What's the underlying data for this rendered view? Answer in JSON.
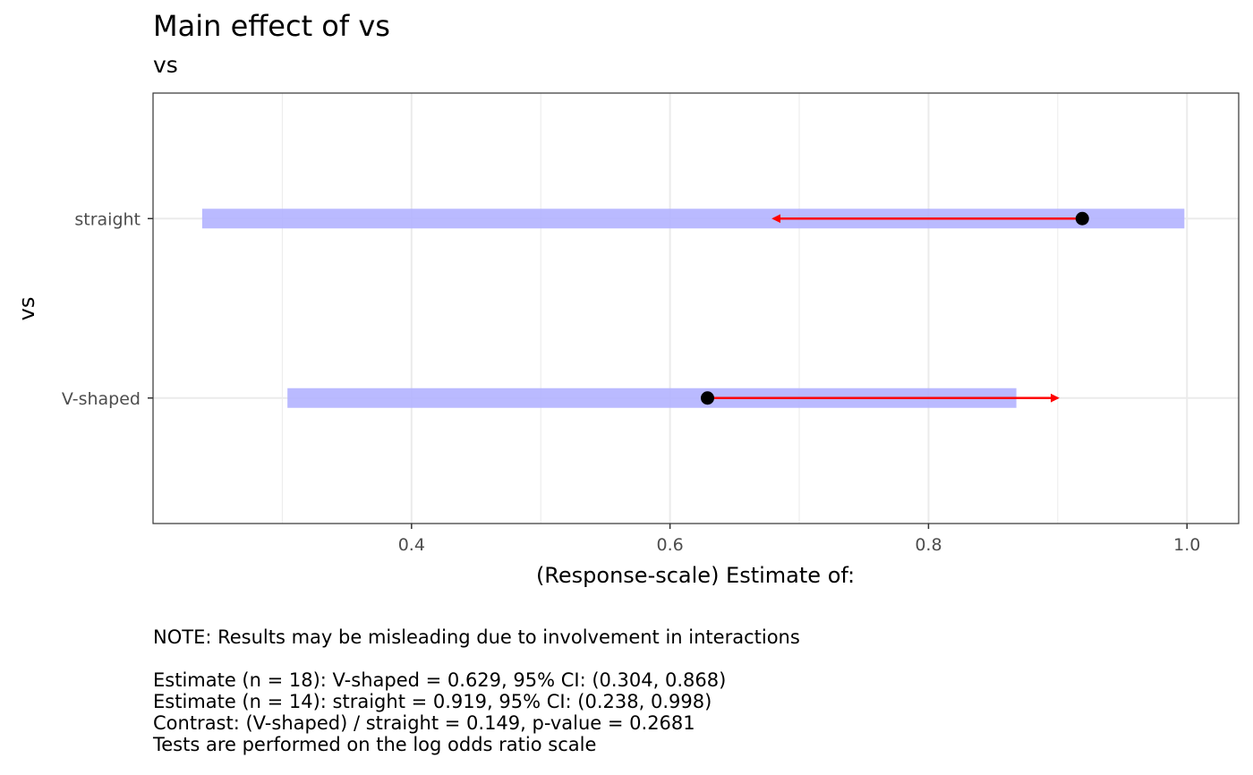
{
  "chart_data": {
    "type": "interval",
    "title": "Main effect of vs",
    "subtitle": "vs",
    "xlabel": "(Response-scale) Estimate of:",
    "ylabel": "vs",
    "xlim": [
      0.2,
      1.04
    ],
    "x_ticks": [
      0.4,
      0.6,
      0.8,
      1.0
    ],
    "x_tick_labels": [
      "0.4",
      "0.6",
      "0.8",
      "1.0"
    ],
    "grid": true,
    "categories": [
      "straight",
      "V-shaped"
    ],
    "estimates": [
      {
        "category": "straight",
        "estimate": 0.919,
        "ci_low": 0.238,
        "ci_high": 0.998,
        "arrow_to": 0.68
      },
      {
        "category": "V-shaped",
        "estimate": 0.629,
        "ci_low": 0.304,
        "ci_high": 0.868,
        "arrow_to": 0.9
      }
    ],
    "colors": {
      "ci_band": "#b3b3ff",
      "arrow": "#ff0000",
      "point": "#000000",
      "grid": "#ebebeb",
      "panel_border": "#333333"
    }
  },
  "caption": {
    "note": "NOTE: Results may be misleading due to involvement in interactions",
    "lines": [
      "Estimate (n = 18): V-shaped = 0.629, 95% CI: (0.304, 0.868)",
      "Estimate (n = 14): straight = 0.919, 95% CI: (0.238, 0.998)",
      "Contrast: (V-shaped) / straight = 0.149, p-value = 0.2681",
      "Tests are performed on the log odds ratio scale"
    ]
  }
}
